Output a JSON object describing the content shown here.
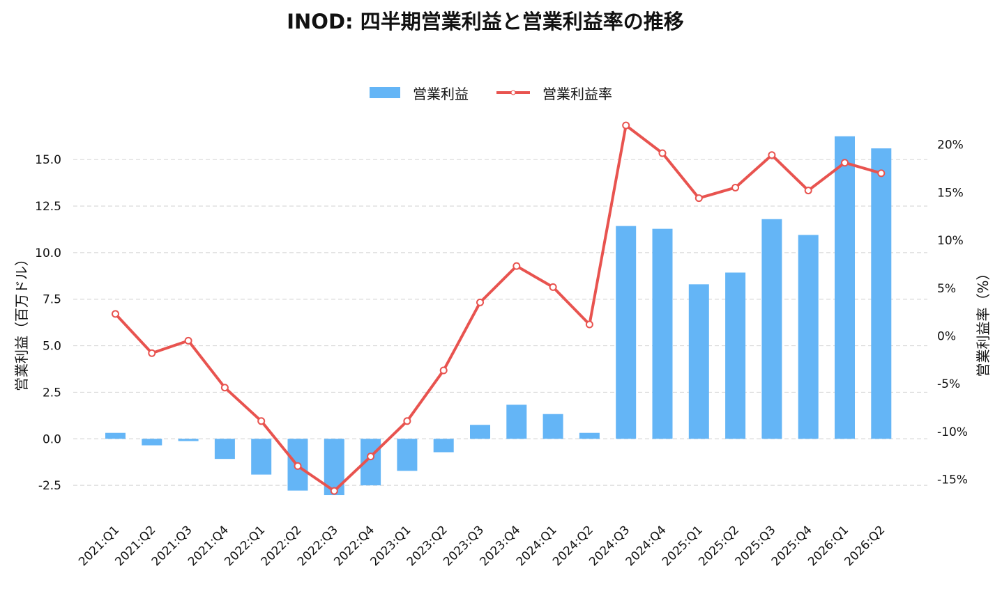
{
  "title": "INOD: 四半期営業利益と営業利益率の推移",
  "colors": {
    "bar": "#64B5F6",
    "line": "#E8534F",
    "grid": "#D9D9D9"
  },
  "chart_data": {
    "type": "bar",
    "categories": [
      "2021:Q1",
      "2021:Q2",
      "2021:Q3",
      "2021:Q4",
      "2022:Q1",
      "2022:Q2",
      "2022:Q3",
      "2022:Q4",
      "2023:Q1",
      "2023:Q2",
      "2023:Q3",
      "2023:Q4",
      "2024:Q1",
      "2024:Q2",
      "2024:Q3",
      "2024:Q4",
      "2025:Q1",
      "2025:Q2",
      "2025:Q3",
      "2025:Q4",
      "2026:Q1",
      "2026:Q2"
    ],
    "series": [
      {
        "name": "営業利益",
        "type": "bar",
        "axis": "left",
        "values": [
          0.32,
          -0.35,
          -0.12,
          -1.08,
          -1.92,
          -2.78,
          -3.02,
          -2.5,
          -1.72,
          -0.72,
          0.75,
          1.83,
          1.33,
          0.32,
          11.43,
          11.28,
          8.3,
          8.93,
          11.8,
          10.95,
          16.25,
          15.6
        ]
      },
      {
        "name": "営業利益率",
        "type": "line",
        "axis": "right",
        "values": [
          2.3,
          -1.8,
          -0.5,
          -5.4,
          -8.9,
          -13.6,
          -16.2,
          -12.6,
          -8.9,
          -3.6,
          3.5,
          7.3,
          5.1,
          1.2,
          22.0,
          19.1,
          14.4,
          15.5,
          18.9,
          15.2,
          18.1,
          17.0
        ]
      }
    ],
    "xlabel": "",
    "ylabel": "営業利益（百万ドル）",
    "y2label": "営業利益率（%）",
    "ylim": [
      -4.29,
      17.4
    ],
    "y2lim": [
      -19.1,
      23.1
    ],
    "yticks": [
      "-2.5",
      "0.0",
      "2.5",
      "5.0",
      "7.5",
      "10.0",
      "12.5",
      "15.0"
    ],
    "y2ticks": [
      "-15%",
      "-10%",
      "-5%",
      "0%",
      "5%",
      "10%",
      "15%",
      "20%"
    ],
    "grid": true,
    "legend": "top-center"
  }
}
